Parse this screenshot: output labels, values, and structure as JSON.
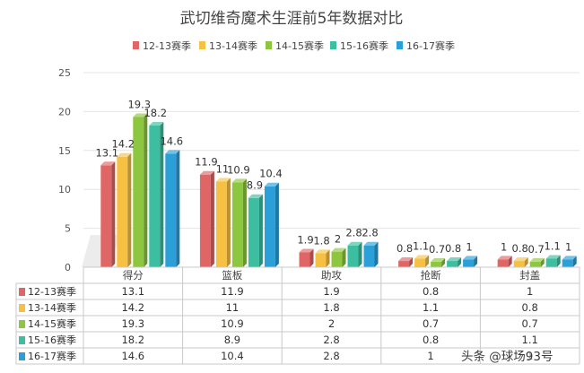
{
  "chart_data": {
    "type": "bar",
    "title": "武切维奇魔术生涯前5年数据对比",
    "categories": [
      "得分",
      "篮板",
      "助攻",
      "抢断",
      "封盖"
    ],
    "series": [
      {
        "name": "12-13赛季",
        "color": "#e06666",
        "values": [
          13.1,
          11.9,
          1.9,
          0.8,
          1
        ]
      },
      {
        "name": "13-14赛季",
        "color": "#f6c143",
        "values": [
          14.2,
          11,
          1.8,
          1.1,
          0.8
        ]
      },
      {
        "name": "14-15赛季",
        "color": "#8dc63f",
        "values": [
          19.3,
          10.9,
          2,
          0.7,
          0.7
        ]
      },
      {
        "name": "15-16赛季",
        "color": "#3cbfa0",
        "values": [
          18.2,
          8.9,
          2.8,
          0.8,
          1.1
        ]
      },
      {
        "name": "16-17赛季",
        "color": "#2a9fd8",
        "values": [
          14.6,
          10.4,
          2.8,
          1,
          1
        ]
      }
    ],
    "data_labels": [
      [
        "13.1",
        "11.9",
        "1.9",
        "0.8",
        "1"
      ],
      [
        "14.2",
        "11",
        "1.8",
        "1.1",
        "0.8"
      ],
      [
        "19.3",
        "10.9",
        "2",
        "0.7",
        "0.7"
      ],
      [
        "18.2",
        "8.9",
        "2.8",
        "0.8",
        "1.1"
      ],
      [
        "14.6",
        "10.4",
        "2.8",
        "1",
        "1"
      ]
    ],
    "ylim": [
      0,
      25
    ],
    "yticks": [
      "0",
      "5",
      "10",
      "15",
      "20",
      "25"
    ],
    "ytick_values": [
      0,
      5,
      10,
      15,
      20,
      25
    ],
    "grid": true,
    "legend": "top"
  },
  "watermark": "头条 @球场93号"
}
